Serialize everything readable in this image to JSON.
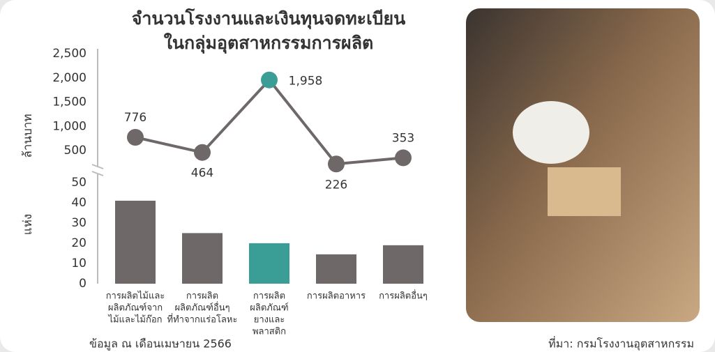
{
  "title": [
    "จำนวนโรงงานและเงินทุนจดทะเบียน",
    "ในกลุ่มอุตสาหกรรมการผลิต"
  ],
  "footer": {
    "note": "ข้อมูล ณ เดือนเมษายน 2566",
    "source": "ที่มา: กรมโรงงานอุตสาหกรรม"
  },
  "chart_data": [
    {
      "type": "line",
      "y_label": "ล้านบาท",
      "values": [
        776,
        464,
        1958,
        226,
        353
      ],
      "value_labels": [
        "776",
        "464",
        "1,958",
        "226",
        "353"
      ],
      "colors": [
        "#6e6869",
        "#6e6869",
        "#3a9e96",
        "#6e6869",
        "#6e6869"
      ],
      "line_color": "#6e6869",
      "ylim": [
        0,
        2600
      ],
      "yticks": [
        500,
        {
          "value": 1000,
          "label": "1,000"
        },
        {
          "value": 1500,
          "label": "1,500"
        },
        {
          "value": 2000,
          "label": "2,000"
        },
        {
          "value": 2500,
          "label": "2,500"
        }
      ]
    },
    {
      "type": "bar",
      "y_label": "แห่ง",
      "categories": [
        [
          "การผลิตไม้และ",
          "ผลิตภัณฑ์จาก",
          "ไม้และไม้ก๊อก"
        ],
        [
          "การผลิต",
          "ผลิตภัณฑ์อื่นๆ",
          "ที่ทำจากแร่อโลหะ"
        ],
        [
          "การผลิต",
          "ผลิตภัณฑ์",
          "ยางและ",
          "พลาสติก"
        ],
        [
          "การผลิตอาหาร"
        ],
        [
          "การผลิตอื่นๆ"
        ]
      ],
      "values": [
        41,
        25,
        20,
        14.5,
        19
      ],
      "colors": [
        "#6e6869",
        "#6e6869",
        "#3a9e96",
        "#6e6869",
        "#6e6869"
      ],
      "ylim": [
        0,
        52
      ],
      "yticks": [
        0,
        10,
        20,
        30,
        40,
        50
      ]
    }
  ]
}
